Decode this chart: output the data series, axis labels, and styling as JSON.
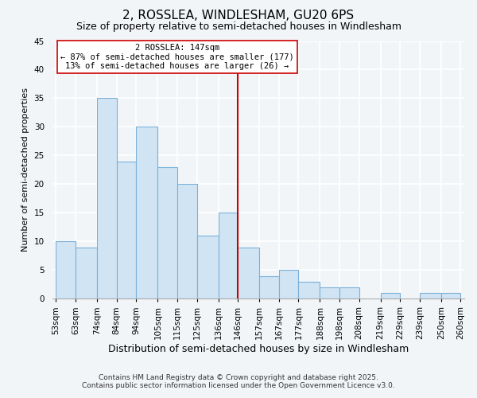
{
  "title": "2, ROSSLEA, WINDLESHAM, GU20 6PS",
  "subtitle": "Size of property relative to semi-detached houses in Windlesham",
  "xlabel": "Distribution of semi-detached houses by size in Windlesham",
  "ylabel": "Number of semi-detached properties",
  "bin_edges": [
    53,
    63,
    74,
    84,
    94,
    105,
    115,
    125,
    136,
    146,
    157,
    167,
    177,
    188,
    198,
    208,
    219,
    229,
    239,
    250,
    260
  ],
  "bin_heights": [
    10,
    9,
    35,
    24,
    30,
    23,
    20,
    11,
    15,
    9,
    4,
    5,
    3,
    2,
    2,
    0,
    1,
    0,
    1,
    1
  ],
  "bar_color": "#d0e4f4",
  "bar_edge_color": "#7ab0d8",
  "vline_x": 146,
  "vline_color": "#cc0000",
  "annotation_text": "2 ROSSLEA: 147sqm\n← 87% of semi-detached houses are smaller (177)\n13% of semi-detached houses are larger (26) →",
  "annotation_box_edge": "#cc0000",
  "annotation_box_face": "#ffffff",
  "ylim": [
    0,
    45
  ],
  "yticks": [
    0,
    5,
    10,
    15,
    20,
    25,
    30,
    35,
    40,
    45
  ],
  "tick_labels": [
    "53sqm",
    "63sqm",
    "74sqm",
    "84sqm",
    "94sqm",
    "105sqm",
    "115sqm",
    "125sqm",
    "136sqm",
    "146sqm",
    "157sqm",
    "167sqm",
    "177sqm",
    "188sqm",
    "198sqm",
    "208sqm",
    "219sqm",
    "229sqm",
    "239sqm",
    "250sqm",
    "260sqm"
  ],
  "footer_line1": "Contains HM Land Registry data © Crown copyright and database right 2025.",
  "footer_line2": "Contains public sector information licensed under the Open Government Licence v3.0.",
  "background_color": "#f2f5f8",
  "grid_color": "#ffffff",
  "title_fontsize": 11,
  "subtitle_fontsize": 9,
  "xlabel_fontsize": 9,
  "ylabel_fontsize": 8,
  "tick_fontsize": 7.5,
  "annotation_fontsize": 7.5,
  "footer_fontsize": 6.5
}
